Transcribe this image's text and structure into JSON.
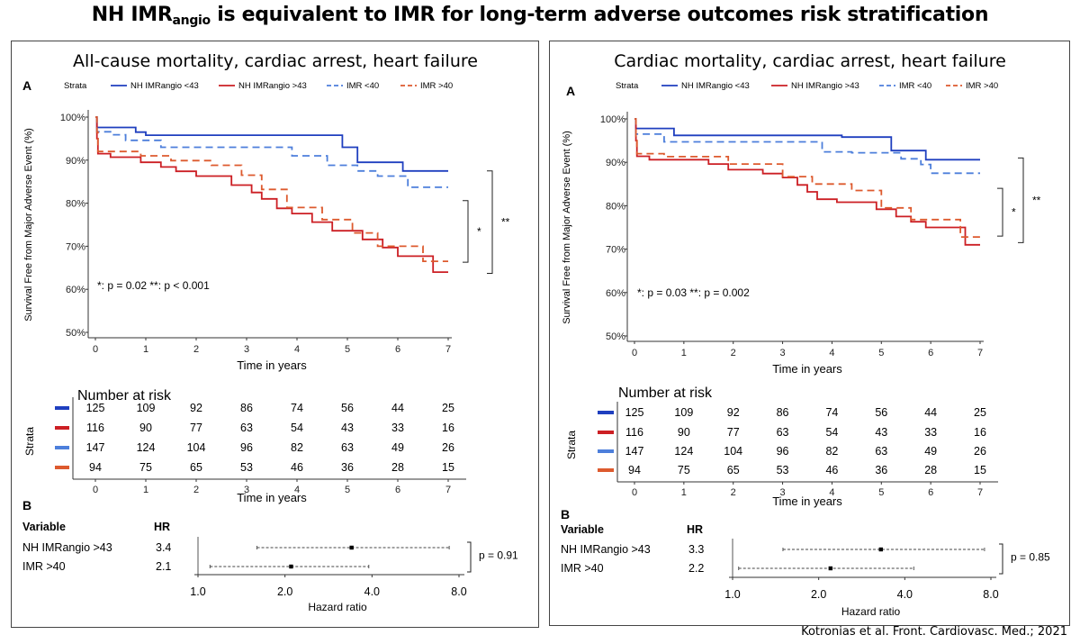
{
  "title": {
    "prefix": "NH IMR",
    "subscript": "angio",
    "suffix": " is equivalent to IMR for long-term adverse outcomes risk stratification"
  },
  "citation": "Kotronias et al. Front. Cardiovasc. Med.; 2021",
  "colors": {
    "nh_lt43": "#1f3fbf",
    "nh_gt43": "#cc1f24",
    "imr_lt40": "#4d7fdb",
    "imr_gt40": "#dd5a2e"
  },
  "chart_data": [
    {
      "type": "line",
      "title": "All-cause mortality, cardiac arrest, heart failure",
      "panel_a_label": "A",
      "panel_b_label": "B",
      "legend_title": "Strata",
      "ylabel": "Survival Free from Major Adverse Event (%)",
      "xlabel": "Time in years",
      "xlim": [
        0,
        7
      ],
      "ylim": [
        50,
        100
      ],
      "xticks": [
        "0",
        "1",
        "2",
        "3",
        "4",
        "5",
        "6",
        "7"
      ],
      "yticks": [
        "50%",
        "60%",
        "70%",
        "80%",
        "90%",
        "100%"
      ],
      "pvalue_text": "*: p = 0.02     **: p < 0.001",
      "bracket_single": "*",
      "bracket_double": "**",
      "series": [
        {
          "name": "NH IMRangio <43",
          "color_key": "nh_lt43",
          "dashed": false,
          "x": [
            0,
            0.03,
            0.6,
            0.8,
            1.0,
            4.3,
            4.9,
            5.2,
            6.1,
            7.0
          ],
          "y": [
            100,
            97.6,
            97.6,
            96.5,
            95.8,
            95.8,
            93,
            89.5,
            87.5,
            87.5
          ]
        },
        {
          "name": "NH IMRangio >43",
          "color_key": "nh_gt43",
          "dashed": false,
          "x": [
            0,
            0.03,
            0.05,
            0.3,
            0.6,
            0.9,
            1.3,
            1.6,
            2.0,
            2.7,
            3.1,
            3.3,
            3.6,
            3.9,
            4.3,
            4.7,
            5.3,
            5.7,
            6.0,
            6.7,
            7.0
          ],
          "y": [
            100,
            95,
            91.5,
            90.7,
            90.7,
            89.5,
            88.4,
            87.4,
            86.3,
            84.2,
            82.5,
            81,
            78.8,
            77.6,
            75.6,
            73.6,
            71.6,
            69.7,
            67.7,
            64,
            64
          ]
        },
        {
          "name": "IMR <40",
          "color_key": "imr_lt40",
          "dashed": true,
          "x": [
            0,
            0.03,
            0.3,
            0.6,
            1.3,
            3.9,
            4.6,
            5.2,
            5.6,
            6.2,
            7.0
          ],
          "y": [
            100,
            96.6,
            95.9,
            94.6,
            93,
            91,
            88.8,
            87.5,
            86.3,
            83.7,
            83.7
          ]
        },
        {
          "name": "IMR >40",
          "color_key": "imr_gt40",
          "dashed": true,
          "x": [
            0,
            0.03,
            0.05,
            0.9,
            1.5,
            2.3,
            2.9,
            3.3,
            3.8,
            4.5,
            5.1,
            5.6,
            6.5,
            7.0
          ],
          "y": [
            100,
            96.5,
            92,
            91,
            89.9,
            88.8,
            86.5,
            83.2,
            79,
            76.2,
            73.1,
            70,
            66.5,
            66.5
          ]
        }
      ],
      "risk_table": {
        "title": "Number at risk",
        "axis_label": "Strata",
        "xlabel": "Time in years",
        "rows": [
          [
            "125",
            "109",
            "92",
            "86",
            "74",
            "56",
            "44",
            "25"
          ],
          [
            "116",
            "90",
            "77",
            "63",
            "54",
            "43",
            "33",
            "16"
          ],
          [
            "147",
            "124",
            "104",
            "96",
            "82",
            "63",
            "49",
            "26"
          ],
          [
            "94",
            "75",
            "65",
            "53",
            "46",
            "36",
            "28",
            "15"
          ]
        ]
      },
      "forest": {
        "header_variable": "Variable",
        "header_hr": "HR",
        "xlabel": "Hazard ratio",
        "ticks": [
          "1.0",
          "2.0",
          "4.0",
          "8.0"
        ],
        "pvalue": "p = 0.91",
        "rows": [
          {
            "label": "NH IMRangio >43",
            "hr": 3.4,
            "hr_text": "3.4",
            "lo": 1.6,
            "hi": 7.4
          },
          {
            "label": "IMR >40",
            "hr": 2.1,
            "hr_text": "2.1",
            "lo": 1.1,
            "hi": 3.9
          }
        ]
      }
    },
    {
      "type": "line",
      "title": "Cardiac mortality, cardiac arrest, heart failure",
      "panel_a_label": "A",
      "panel_b_label": "B",
      "legend_title": "Strata",
      "ylabel": "Survival Free from Major Adverse Event (%)",
      "xlabel": "Time in years",
      "xlim": [
        0,
        7
      ],
      "ylim": [
        50,
        100
      ],
      "xticks": [
        "0",
        "1",
        "2",
        "3",
        "4",
        "5",
        "6",
        "7"
      ],
      "yticks": [
        "50%",
        "60%",
        "70%",
        "80%",
        "90%",
        "100%"
      ],
      "pvalue_text": "*: p = 0.03     **: p = 0.002",
      "bracket_single": "*",
      "bracket_double": "**",
      "series": [
        {
          "name": "NH IMRangio <43",
          "color_key": "nh_lt43",
          "dashed": false,
          "x": [
            0,
            0.03,
            0.6,
            0.8,
            4.2,
            5.2,
            5.9,
            7.0
          ],
          "y": [
            100,
            97.8,
            97.8,
            96.2,
            95.8,
            92.7,
            90.6,
            90.6
          ]
        },
        {
          "name": "NH IMRangio >43",
          "color_key": "nh_gt43",
          "dashed": false,
          "x": [
            0,
            0.03,
            0.05,
            0.3,
            1.5,
            1.9,
            2.6,
            3.0,
            3.3,
            3.5,
            3.7,
            4.1,
            4.9,
            5.3,
            5.6,
            5.9,
            6.7,
            7.0
          ],
          "y": [
            100,
            95,
            91.4,
            90.6,
            89.6,
            88.3,
            87.4,
            86.5,
            84.8,
            83.2,
            81.5,
            80.8,
            79.2,
            77.5,
            76.3,
            75,
            71,
            71
          ]
        },
        {
          "name": "IMR <40",
          "color_key": "imr_lt40",
          "dashed": true,
          "x": [
            0,
            0.03,
            0.6,
            2.6,
            3.8,
            4.4,
            5.4,
            5.8,
            6.0,
            7.0
          ],
          "y": [
            100,
            96.5,
            94.7,
            94.7,
            92.4,
            92.2,
            90.8,
            89.5,
            87.5,
            87.5
          ]
        },
        {
          "name": "IMR >40",
          "color_key": "imr_gt40",
          "dashed": true,
          "x": [
            0,
            0.03,
            0.05,
            0.6,
            1.9,
            3.0,
            3.6,
            4.4,
            5.0,
            5.6,
            6.6,
            7.0
          ],
          "y": [
            100,
            96,
            92,
            91.3,
            89.6,
            86.7,
            85,
            83.5,
            79.5,
            76.8,
            72.8,
            72.8
          ]
        }
      ],
      "risk_table": {
        "title": "Number at risk",
        "axis_label": "Strata",
        "xlabel": "Time in years",
        "rows": [
          [
            "125",
            "109",
            "92",
            "86",
            "74",
            "56",
            "44",
            "25"
          ],
          [
            "116",
            "90",
            "77",
            "63",
            "54",
            "43",
            "33",
            "16"
          ],
          [
            "147",
            "124",
            "104",
            "96",
            "82",
            "63",
            "49",
            "26"
          ],
          [
            "94",
            "75",
            "65",
            "53",
            "46",
            "36",
            "28",
            "15"
          ]
        ]
      },
      "forest": {
        "header_variable": "Variable",
        "header_hr": "HR",
        "xlabel": "Hazard ratio",
        "ticks": [
          "1.0",
          "2.0",
          "4.0",
          "8.0"
        ],
        "pvalue": "p = 0.85",
        "rows": [
          {
            "label": "NH IMRangio >43",
            "hr": 3.3,
            "hr_text": "3.3",
            "lo": 1.5,
            "hi": 7.6
          },
          {
            "label": "IMR >40",
            "hr": 2.2,
            "hr_text": "2.2",
            "lo": 1.05,
            "hi": 4.3
          }
        ]
      }
    }
  ]
}
